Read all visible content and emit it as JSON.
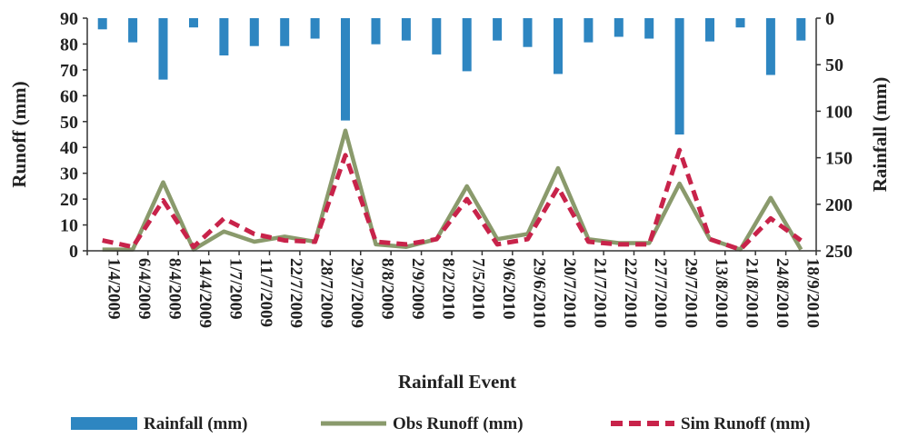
{
  "chart_data": {
    "type": "bar-line-combo",
    "categories": [
      "1/4/2009",
      "6/4/2009",
      "8/4/2009",
      "14/4/2009",
      "1/7/2009",
      "11/7/2009",
      "22/7/2009",
      "28/7/2009",
      "29/7/2009",
      "8/8/2009",
      "2/9/2009",
      "8/2/2010",
      "7/5/2010",
      "9/6/2010",
      "29/6/2010",
      "20/7/2010",
      "21/7/2010",
      "22/7/2010",
      "27/7/2010",
      "29/7/2010",
      "13/8/2010",
      "21/8/2010",
      "24/8/2010",
      "18/9/2010"
    ],
    "xlabel": "Rainfall Event",
    "ylabel_left": "Runoff (mm)",
    "ylabel_right": "Rainfall (mm)",
    "ylim_left": [
      0,
      90
    ],
    "ylim_right_inverted": [
      0,
      250
    ],
    "yticks_left": [
      0,
      10,
      20,
      30,
      40,
      50,
      60,
      70,
      80,
      90
    ],
    "yticks_right": [
      0,
      50,
      100,
      150,
      200,
      250
    ],
    "grid": false,
    "legend_position": "bottom",
    "series": [
      {
        "name": "Rainfall (mm)",
        "kind": "bar",
        "axis": "right",
        "color": "#2e86c1",
        "values": [
          12,
          26,
          66,
          10,
          40,
          30,
          30,
          22,
          110,
          28,
          24,
          39,
          57,
          24,
          31,
          60,
          26,
          20,
          22,
          125,
          25,
          10,
          61,
          24
        ]
      },
      {
        "name": "Obs Runoff (mm)",
        "kind": "line",
        "axis": "left",
        "color": "#8a9a6c",
        "values": [
          0.5,
          0.5,
          26.5,
          0.5,
          7.5,
          3.5,
          5.5,
          3.5,
          46.5,
          2.5,
          1.5,
          4.5,
          25,
          4.5,
          6.5,
          32,
          4.5,
          3,
          3,
          26,
          4.5,
          0.5,
          20.5,
          0.5
        ]
      },
      {
        "name": "Sim Runoff (mm)",
        "kind": "dashed-line",
        "axis": "left",
        "color": "#c8234a",
        "values": [
          4,
          1.5,
          19.5,
          1.5,
          12.5,
          6.5,
          4,
          3.5,
          37,
          3.5,
          2.5,
          4.5,
          20,
          2.5,
          4.5,
          24.5,
          3.5,
          2.5,
          2.5,
          39,
          4.5,
          0.5,
          12.5,
          4
        ]
      }
    ]
  }
}
